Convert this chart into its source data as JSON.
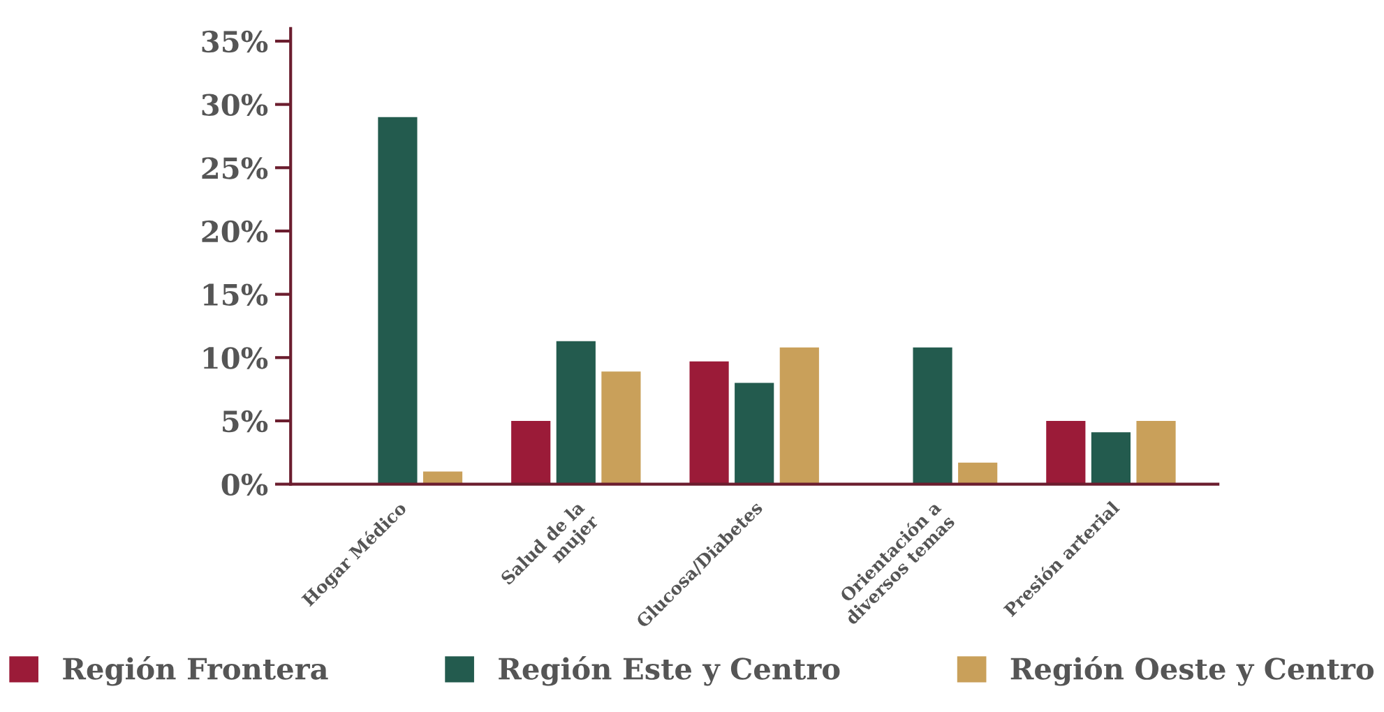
{
  "chart_data": {
    "type": "bar",
    "categories": [
      "Hogar Médico",
      "Salud de la\nmujer",
      "Glucosa/Diabetes",
      "Orientación a\ndiversos temas",
      "Presión arterial"
    ],
    "series": [
      {
        "name": "Región Frontera",
        "color": "#9b1b38",
        "values": [
          null,
          5.0,
          9.7,
          null,
          5.0
        ]
      },
      {
        "name": "Región Este y Centro",
        "color": "#235b4e",
        "values": [
          29.0,
          11.3,
          8.0,
          10.8,
          4.1
        ]
      },
      {
        "name": "Región Oeste y Centro",
        "color": "#c9a05a",
        "values": [
          1.0,
          8.9,
          10.8,
          1.7,
          5.0
        ]
      }
    ],
    "ylim": [
      0,
      36
    ],
    "yticks": [
      {
        "value": 0,
        "label": "0%"
      },
      {
        "value": 5,
        "label": "5%"
      },
      {
        "value": 10,
        "label": "10%"
      },
      {
        "value": 15,
        "label": "15%"
      },
      {
        "value": 20,
        "label": "20%"
      },
      {
        "value": 25,
        "label": "25%"
      },
      {
        "value": 30,
        "label": "30%"
      },
      {
        "value": 35,
        "label": "35%"
      }
    ],
    "grid": false,
    "legend": "bottom"
  }
}
